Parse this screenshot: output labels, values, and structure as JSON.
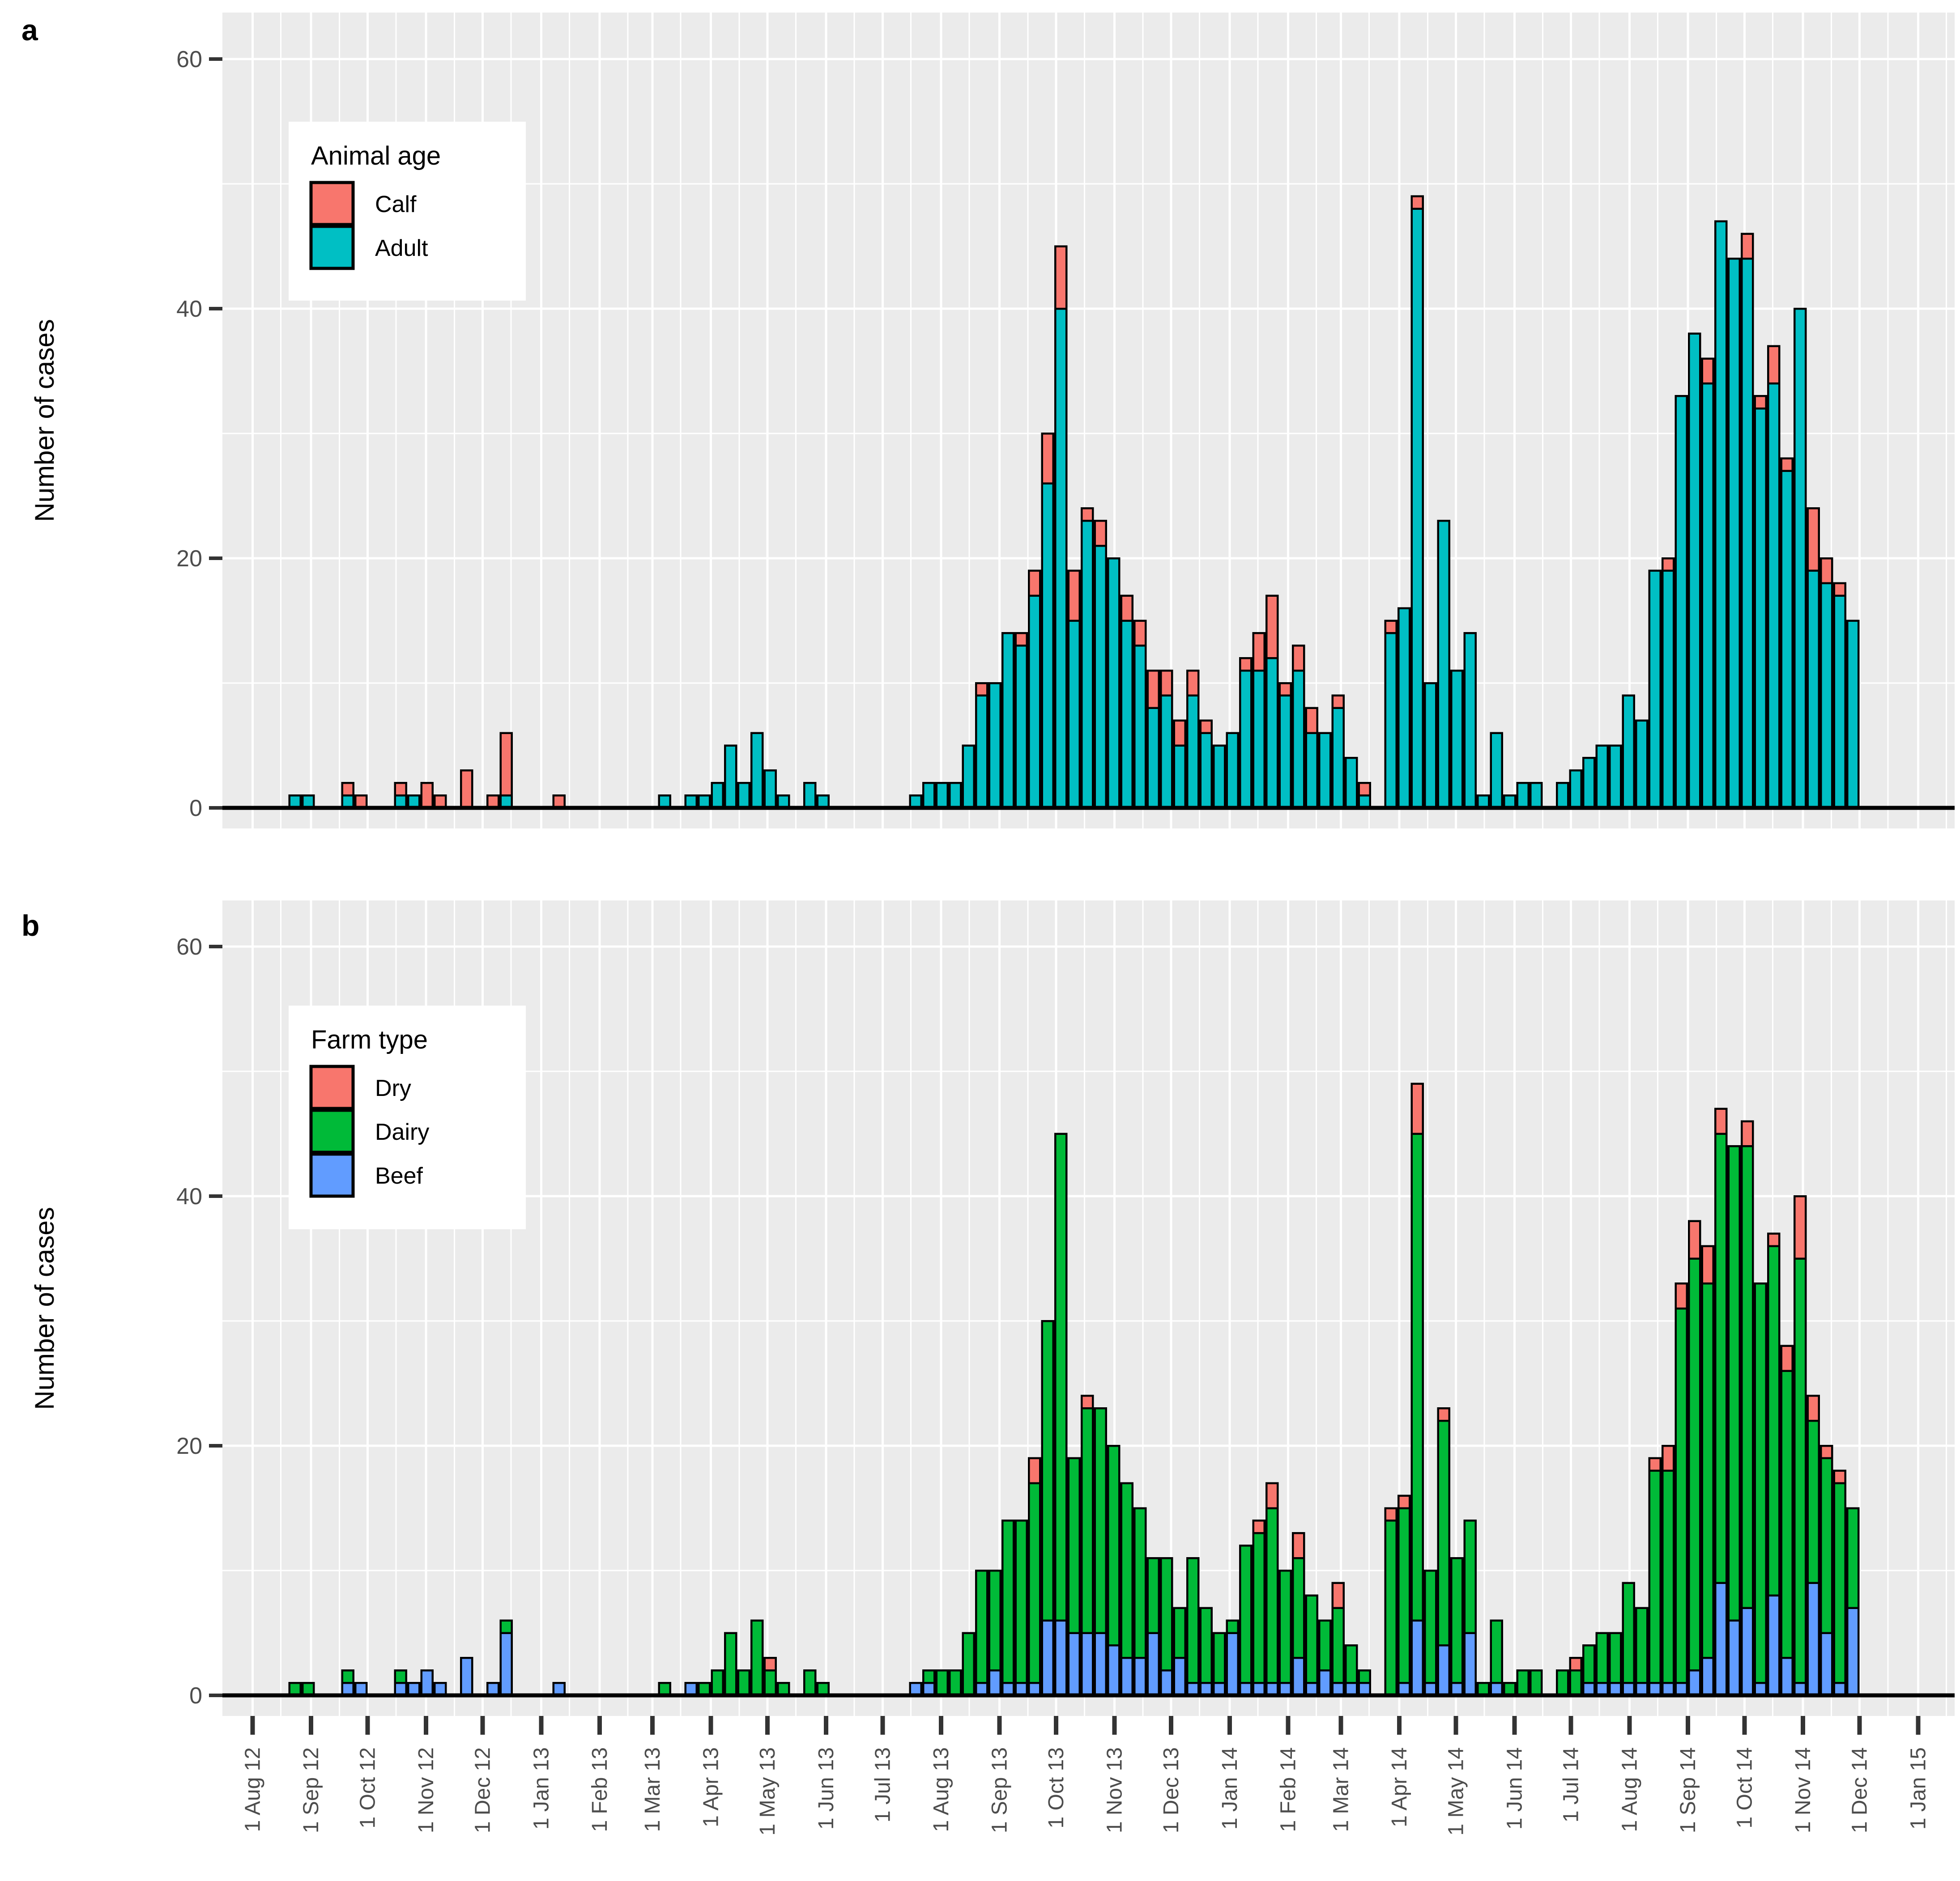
{
  "y_axis": {
    "title": "Number of cases",
    "ticks": [
      0,
      20,
      40,
      60
    ]
  },
  "x_axis": {
    "tick_labels": [
      "1 Aug 12",
      "1 Sep 12",
      "1 Oct 12",
      "1 Nov 12",
      "1 Dec 12",
      "1 Jan 13",
      "1 Feb 13",
      "1 Mar 13",
      "1 Apr 13",
      "1 May 13",
      "1 Jun 13",
      "1 Jul 13",
      "1 Aug 13",
      "1 Sep 13",
      "1 Oct 13",
      "1 Nov 13",
      "1 Dec 13",
      "1 Jan 14",
      "1 Feb 14",
      "1 Mar 14",
      "1 Apr 14",
      "1 May 14",
      "1 Jun 14",
      "1 Jul 14",
      "1 Aug 14",
      "1 Sep 14",
      "1 Oct 14",
      "1 Nov 14",
      "1 Dec 14",
      "1 Jan 15"
    ]
  },
  "panel_a": {
    "label": "a",
    "legend": {
      "title": "Animal age",
      "items": [
        {
          "label": "Calf",
          "color": "#F8766D"
        },
        {
          "label": "Adult",
          "color": "#00BFC4"
        }
      ]
    }
  },
  "panel_b": {
    "label": "b",
    "legend": {
      "title": "Farm type",
      "items": [
        {
          "label": "Dry",
          "color": "#F8766D"
        },
        {
          "label": "Dairy",
          "color": "#00BA38"
        },
        {
          "label": "Beef",
          "color": "#619CFF"
        }
      ]
    }
  },
  "style": {
    "panel_bg": "#EBEBEB",
    "grid_color": "#FFFFFF",
    "bar_stroke": "#000000",
    "tick_color": "#333333",
    "adult": "#00BFC4",
    "calf": "#F8766D",
    "beef": "#619CFF",
    "dairy": "#00BA38",
    "dry": "#F8766D"
  },
  "chart_data": {
    "type": "bar",
    "stacked": true,
    "bin": "week",
    "x_range": [
      "2012-07-16",
      "2015-01-20"
    ],
    "ylim": [
      0,
      60
    ],
    "grid": "on",
    "legend_position": "inside-top-left",
    "panels": [
      {
        "id": "a",
        "legend_title": "Animal age",
        "series_order": [
          "adult",
          "calf"
        ]
      },
      {
        "id": "b",
        "legend_title": "Farm type",
        "series_order": [
          "beef",
          "dairy",
          "dry"
        ]
      }
    ],
    "weeks_columns": [
      "week_start",
      "adult",
      "calf",
      "beef",
      "dairy",
      "dry"
    ],
    "weeks": [
      [
        "2012-08-20",
        1,
        0,
        0,
        1,
        0
      ],
      [
        "2012-08-27",
        1,
        0,
        0,
        1,
        0
      ],
      [
        "2012-09-17",
        1,
        1,
        1,
        1,
        0
      ],
      [
        "2012-09-24",
        0,
        1,
        1,
        0,
        0
      ],
      [
        "2012-10-15",
        1,
        1,
        1,
        1,
        0
      ],
      [
        "2012-10-22",
        1,
        0,
        1,
        0,
        0
      ],
      [
        "2012-10-29",
        0,
        2,
        2,
        0,
        0
      ],
      [
        "2012-11-05",
        0,
        1,
        1,
        0,
        0
      ],
      [
        "2012-11-19",
        0,
        3,
        3,
        0,
        0
      ],
      [
        "2012-12-03",
        0,
        1,
        1,
        0,
        0
      ],
      [
        "2012-12-10",
        1,
        5,
        5,
        1,
        0
      ],
      [
        "2013-01-07",
        0,
        1,
        1,
        0,
        0
      ],
      [
        "2013-03-04",
        1,
        0,
        0,
        1,
        0
      ],
      [
        "2013-03-18",
        1,
        0,
        1,
        0,
        0
      ],
      [
        "2013-03-25",
        1,
        0,
        0,
        1,
        0
      ],
      [
        "2013-04-01",
        2,
        0,
        0,
        2,
        0
      ],
      [
        "2013-04-08",
        5,
        0,
        0,
        5,
        0
      ],
      [
        "2013-04-15",
        2,
        0,
        0,
        2,
        0
      ],
      [
        "2013-04-22",
        6,
        0,
        0,
        6,
        0
      ],
      [
        "2013-04-29",
        3,
        0,
        0,
        2,
        1
      ],
      [
        "2013-05-06",
        1,
        0,
        0,
        1,
        0
      ],
      [
        "2013-05-20",
        2,
        0,
        0,
        2,
        0
      ],
      [
        "2013-05-27",
        1,
        0,
        0,
        1,
        0
      ],
      [
        "2013-07-15",
        1,
        0,
        1,
        0,
        0
      ],
      [
        "2013-07-22",
        2,
        0,
        1,
        1,
        0
      ],
      [
        "2013-07-29",
        2,
        0,
        0,
        2,
        0
      ],
      [
        "2013-08-05",
        2,
        0,
        0,
        2,
        0
      ],
      [
        "2013-08-12",
        5,
        0,
        0,
        5,
        0
      ],
      [
        "2013-08-19",
        9,
        1,
        1,
        9,
        0
      ],
      [
        "2013-08-26",
        10,
        0,
        2,
        8,
        0
      ],
      [
        "2013-09-02",
        14,
        0,
        1,
        13,
        0
      ],
      [
        "2013-09-09",
        13,
        1,
        1,
        13,
        0
      ],
      [
        "2013-09-16",
        17,
        2,
        1,
        16,
        2
      ],
      [
        "2013-09-23",
        26,
        4,
        6,
        24,
        0
      ],
      [
        "2013-09-30",
        40,
        5,
        6,
        39,
        0
      ],
      [
        "2013-10-07",
        15,
        4,
        5,
        14,
        0
      ],
      [
        "2013-10-14",
        23,
        1,
        5,
        18,
        1
      ],
      [
        "2013-10-21",
        21,
        2,
        5,
        18,
        0
      ],
      [
        "2013-10-28",
        20,
        0,
        4,
        16,
        0
      ],
      [
        "2013-11-04",
        15,
        2,
        3,
        14,
        0
      ],
      [
        "2013-11-11",
        13,
        2,
        3,
        12,
        0
      ],
      [
        "2013-11-18",
        8,
        3,
        5,
        6,
        0
      ],
      [
        "2013-11-25",
        9,
        2,
        2,
        9,
        0
      ],
      [
        "2013-12-02",
        5,
        2,
        3,
        4,
        0
      ],
      [
        "2013-12-09",
        9,
        2,
        1,
        10,
        0
      ],
      [
        "2013-12-16",
        6,
        1,
        1,
        6,
        0
      ],
      [
        "2013-12-23",
        5,
        0,
        1,
        4,
        0
      ],
      [
        "2013-12-30",
        6,
        0,
        5,
        1,
        0
      ],
      [
        "2014-01-06",
        11,
        1,
        1,
        11,
        0
      ],
      [
        "2014-01-13",
        11,
        3,
        1,
        12,
        1
      ],
      [
        "2014-01-20",
        12,
        5,
        1,
        14,
        2
      ],
      [
        "2014-01-27",
        9,
        1,
        1,
        9,
        0
      ],
      [
        "2014-02-03",
        11,
        2,
        3,
        8,
        2
      ],
      [
        "2014-02-10",
        6,
        2,
        1,
        7,
        0
      ],
      [
        "2014-02-17",
        6,
        0,
        2,
        4,
        0
      ],
      [
        "2014-02-24",
        8,
        1,
        1,
        6,
        2
      ],
      [
        "2014-03-03",
        4,
        0,
        1,
        3,
        0
      ],
      [
        "2014-03-10",
        1,
        1,
        1,
        1,
        0
      ],
      [
        "2014-03-24",
        14,
        1,
        0,
        14,
        1
      ],
      [
        "2014-03-31",
        16,
        0,
        1,
        14,
        1
      ],
      [
        "2014-04-07",
        48,
        1,
        6,
        39,
        4
      ],
      [
        "2014-04-14",
        10,
        0,
        1,
        9,
        0
      ],
      [
        "2014-04-21",
        23,
        0,
        4,
        18,
        1
      ],
      [
        "2014-04-28",
        11,
        0,
        1,
        10,
        0
      ],
      [
        "2014-05-05",
        14,
        0,
        5,
        9,
        0
      ],
      [
        "2014-05-12",
        1,
        0,
        0,
        1,
        0
      ],
      [
        "2014-05-19",
        6,
        0,
        1,
        5,
        0
      ],
      [
        "2014-05-26",
        1,
        0,
        0,
        1,
        0
      ],
      [
        "2014-06-02",
        2,
        0,
        0,
        2,
        0
      ],
      [
        "2014-06-09",
        2,
        0,
        0,
        2,
        0
      ],
      [
        "2014-06-23",
        2,
        0,
        0,
        2,
        0
      ],
      [
        "2014-06-30",
        3,
        0,
        0,
        2,
        1
      ],
      [
        "2014-07-07",
        4,
        0,
        1,
        3,
        0
      ],
      [
        "2014-07-14",
        5,
        0,
        1,
        4,
        0
      ],
      [
        "2014-07-21",
        5,
        0,
        1,
        4,
        0
      ],
      [
        "2014-07-28",
        9,
        0,
        1,
        8,
        0
      ],
      [
        "2014-08-04",
        7,
        0,
        1,
        6,
        0
      ],
      [
        "2014-08-11",
        19,
        0,
        1,
        17,
        1
      ],
      [
        "2014-08-18",
        19,
        1,
        1,
        17,
        2
      ],
      [
        "2014-08-25",
        33,
        0,
        1,
        30,
        2
      ],
      [
        "2014-09-01",
        38,
        0,
        2,
        33,
        3
      ],
      [
        "2014-09-08",
        34,
        2,
        3,
        30,
        3
      ],
      [
        "2014-09-15",
        47,
        0,
        9,
        36,
        2
      ],
      [
        "2014-09-22",
        44,
        0,
        6,
        38,
        0
      ],
      [
        "2014-09-29",
        44,
        2,
        7,
        37,
        2
      ],
      [
        "2014-10-06",
        32,
        1,
        1,
        32,
        0
      ],
      [
        "2014-10-13",
        34,
        3,
        8,
        28,
        1
      ],
      [
        "2014-10-20",
        27,
        1,
        3,
        23,
        2
      ],
      [
        "2014-10-27",
        40,
        0,
        1,
        34,
        5
      ],
      [
        "2014-11-03",
        19,
        5,
        9,
        13,
        2
      ],
      [
        "2014-11-10",
        18,
        2,
        5,
        14,
        1
      ],
      [
        "2014-11-17",
        17,
        1,
        1,
        16,
        1
      ],
      [
        "2014-11-24",
        15,
        0,
        7,
        8,
        0
      ]
    ]
  }
}
